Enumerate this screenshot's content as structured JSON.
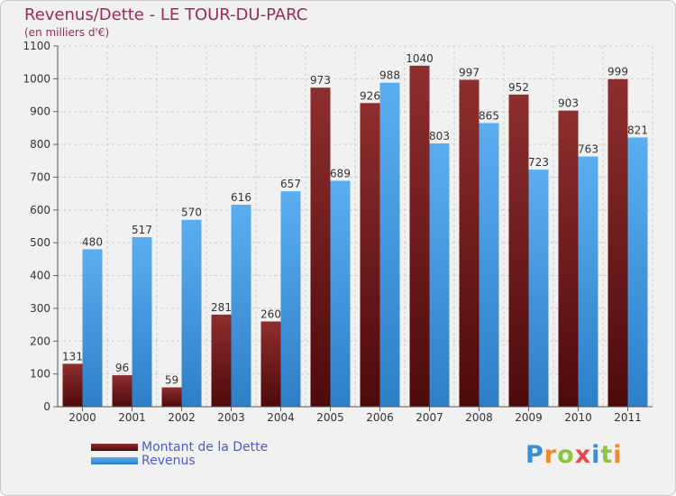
{
  "header": {
    "title": "Revenus/Dette - LE TOUR-DU-PARC",
    "subtitle": "(en milliers d'€)"
  },
  "legend": {
    "items": [
      {
        "label": "Montant de la Dette",
        "color": "#7a1a1a"
      },
      {
        "label": "Revenus",
        "color": "#3a96e0"
      }
    ]
  },
  "logo": {
    "text": "Proxiti",
    "colors": [
      "#3a8fd0",
      "#f08a28",
      "#8cc63e",
      "#e54b4b",
      "#3a8fd0",
      "#8cc63e",
      "#f08a28"
    ]
  },
  "colors": {
    "dette": "#7a1a1a",
    "revenus": "#3a96e0",
    "grid": "#cfcfcf",
    "accent_text": "#a0285a"
  },
  "chart_data": {
    "type": "bar",
    "title": "Revenus/Dette - LE TOUR-DU-PARC",
    "subtitle": "(en milliers d'€)",
    "categories": [
      "2000",
      "2001",
      "2002",
      "2003",
      "2004",
      "2005",
      "2006",
      "2007",
      "2008",
      "2009",
      "2010",
      "2011"
    ],
    "series": [
      {
        "name": "Montant de la Dette",
        "values": [
          131,
          96,
          59,
          281,
          260,
          973,
          926,
          1040,
          997,
          952,
          903,
          999
        ]
      },
      {
        "name": "Revenus",
        "values": [
          480,
          517,
          570,
          616,
          657,
          689,
          988,
          803,
          865,
          723,
          763,
          821
        ]
      }
    ],
    "ylim": [
      0,
      1100
    ],
    "yticks": [
      0,
      100,
      200,
      300,
      400,
      500,
      600,
      700,
      800,
      900,
      1000,
      1100
    ],
    "grid": true,
    "legend_position": "bottom-left"
  }
}
